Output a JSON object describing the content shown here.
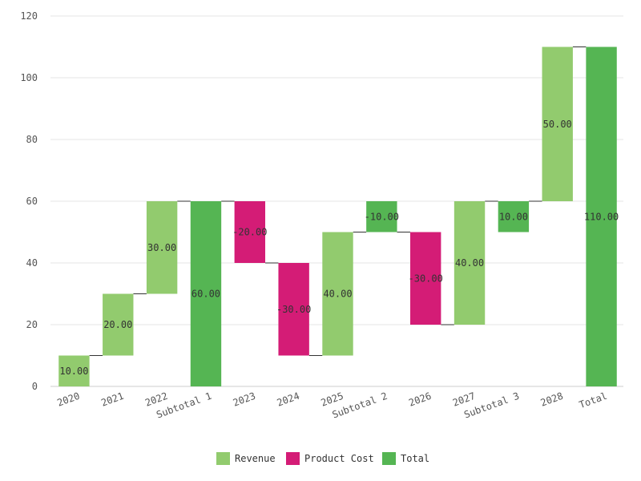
{
  "chart_data": {
    "type": "bar",
    "subtype": "waterfall",
    "title": "",
    "xlabel": "",
    "ylabel": "",
    "ylim": [
      0,
      120
    ],
    "yticks": [
      0,
      20,
      40,
      60,
      80,
      100,
      120
    ],
    "grid": true,
    "legend_position": "bottom",
    "categories": [
      "2020",
      "2021",
      "2022",
      "Subtotal 1",
      "2023",
      "2024",
      "2025",
      "Subtotal 2",
      "2026",
      "2027",
      "Subtotal 3",
      "2028",
      "Total"
    ],
    "bars": [
      {
        "category": "2020",
        "series": "Revenue",
        "start": 0,
        "end": 10,
        "label": "10.00"
      },
      {
        "category": "2021",
        "series": "Revenue",
        "start": 10,
        "end": 30,
        "label": "20.00"
      },
      {
        "category": "2022",
        "series": "Revenue",
        "start": 30,
        "end": 60,
        "label": "30.00"
      },
      {
        "category": "Subtotal 1",
        "series": "Total",
        "start": 0,
        "end": 60,
        "label": "60.00"
      },
      {
        "category": "2023",
        "series": "Product Cost",
        "start": 60,
        "end": 40,
        "label": "-20.00"
      },
      {
        "category": "2024",
        "series": "Product Cost",
        "start": 40,
        "end": 10,
        "label": "-30.00"
      },
      {
        "category": "2025",
        "series": "Revenue",
        "start": 10,
        "end": 50,
        "label": "40.00"
      },
      {
        "category": "Subtotal 2",
        "series": "Total",
        "start": 60,
        "end": 50,
        "label": "-10.00"
      },
      {
        "category": "2026",
        "series": "Product Cost",
        "start": 50,
        "end": 20,
        "label": "-30.00"
      },
      {
        "category": "2027",
        "series": "Revenue",
        "start": 20,
        "end": 60,
        "label": "40.00"
      },
      {
        "category": "Subtotal 3",
        "series": "Total",
        "start": 50,
        "end": 60,
        "label": "10.00"
      },
      {
        "category": "2028",
        "series": "Revenue",
        "start": 60,
        "end": 110,
        "label": "50.00"
      },
      {
        "category": "Total",
        "series": "Total",
        "start": 0,
        "end": 110,
        "label": "110.00"
      }
    ],
    "legend": [
      {
        "name": "Revenue",
        "color": "#92cb6e"
      },
      {
        "name": "Product Cost",
        "color": "#d41c76"
      },
      {
        "name": "Total",
        "color": "#55b553"
      }
    ]
  }
}
